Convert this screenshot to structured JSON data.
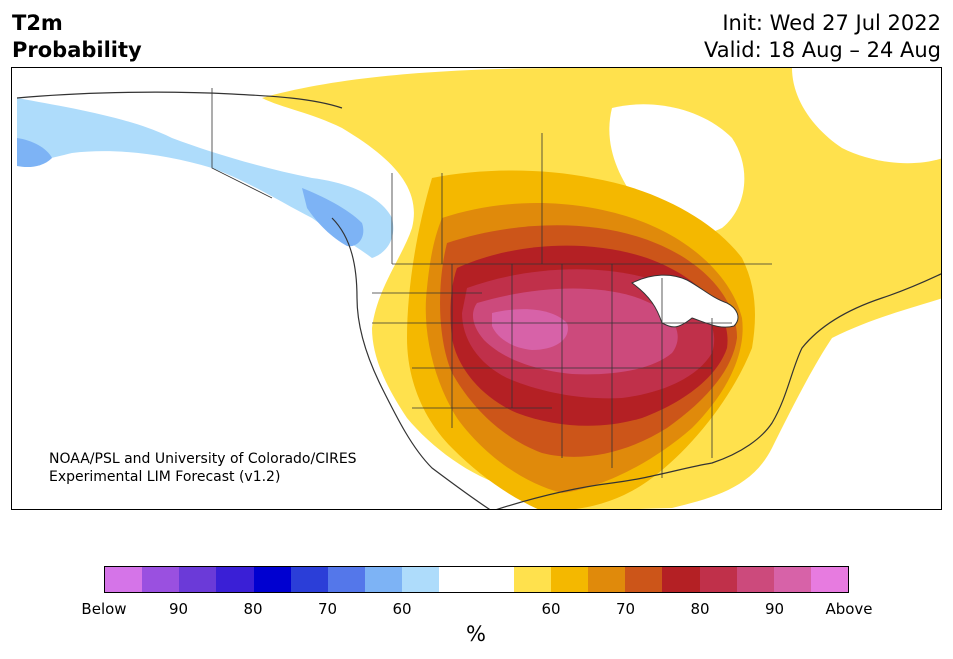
{
  "header": {
    "title_line1": "T2m",
    "title_line2": "Probability",
    "init": "Init: Wed 27 Jul 2022",
    "valid": "Valid: 18 Aug – 24 Aug"
  },
  "credit": {
    "line1": "NOAA/PSL and University of Colorado/CIRES",
    "line2": "Experimental LIM Forecast (v1.2)"
  },
  "colorbar": {
    "colors": [
      "#d574e8",
      "#9a50e0",
      "#6b3ad8",
      "#3a1fd6",
      "#0000d0",
      "#2b3ed8",
      "#5477ea",
      "#7db3f5",
      "#aedcfb",
      "#ffffff",
      "#ffffff",
      "#ffe14d",
      "#f4b800",
      "#e08a0b",
      "#cc5519",
      "#b42024",
      "#c0304a",
      "#cc4a7c",
      "#d762a8",
      "#e77be0"
    ],
    "labels": [
      "Below",
      "90",
      "80",
      "70",
      "60",
      "60",
      "70",
      "80",
      "90",
      "Above"
    ],
    "unit": "%"
  },
  "colors": {
    "cold_light": "#aedcfb",
    "cold_mid": "#7db3f5",
    "warm_50": "#ffe14d",
    "warm_60": "#f4b800",
    "warm_65": "#e08a0b",
    "warm_70": "#cc5519",
    "warm_75": "#b42024",
    "warm_80": "#c0304a",
    "warm_85": "#cc4a7c",
    "warm_90": "#d762a8"
  }
}
